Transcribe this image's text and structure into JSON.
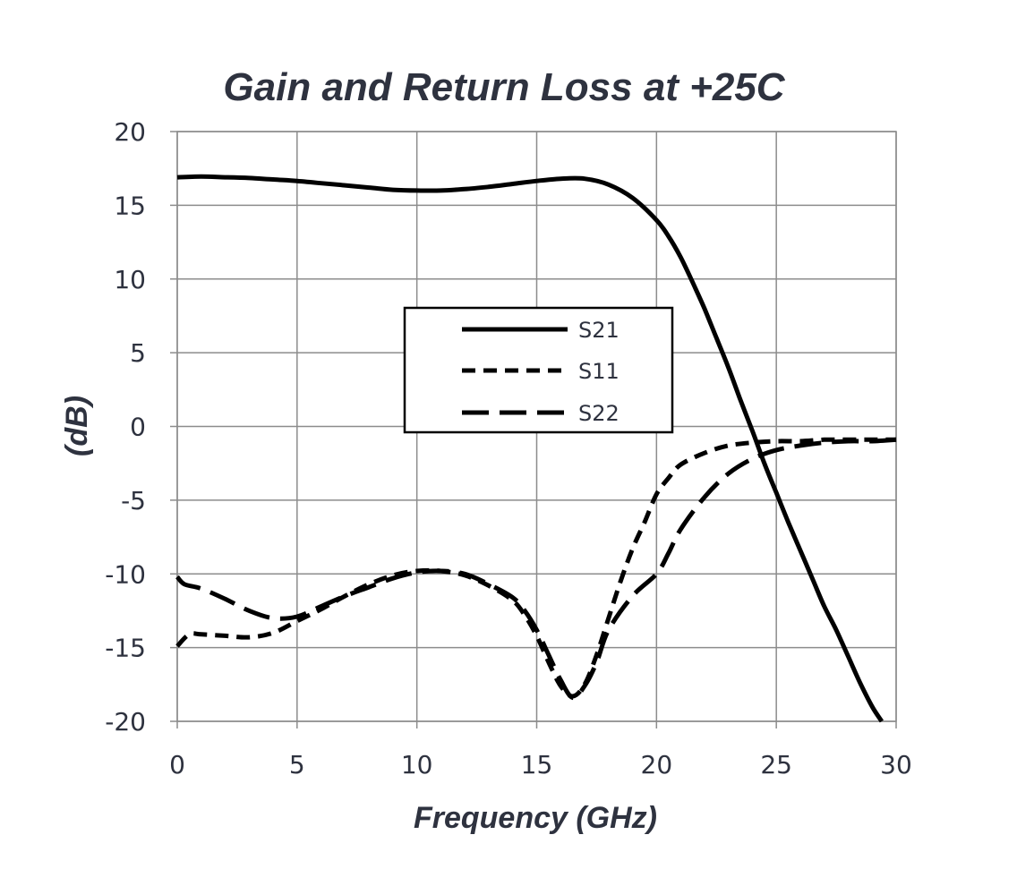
{
  "chart_data": {
    "type": "line",
    "title": "Gain and Return Loss at +25C",
    "xlabel": "Frequency (GHz)",
    "ylabel": "(dB)",
    "xlim": [
      0,
      30
    ],
    "ylim": [
      -20,
      20
    ],
    "x_ticks": [
      0,
      5,
      10,
      15,
      20,
      25,
      30
    ],
    "y_ticks": [
      20,
      15,
      10,
      5,
      0,
      -5,
      -10,
      -15,
      -20
    ],
    "x_tick_labels": [
      "0",
      "5",
      "10",
      "15",
      "20",
      "25",
      "30"
    ],
    "y_tick_labels": [
      "20",
      "15",
      "10",
      "5",
      "0",
      "-5",
      "-10",
      "-15",
      "-20"
    ],
    "grid": true,
    "legend_position": "center",
    "line_color": "#000000",
    "text_color": "#2e323f",
    "grid_color": "#8c8c8c",
    "series": [
      {
        "name": "S21",
        "style": "solid",
        "x": [
          0,
          1,
          2,
          3,
          4,
          5,
          6,
          7,
          8,
          9,
          10,
          11,
          12,
          13,
          14,
          15,
          16,
          17,
          18,
          19,
          20,
          20.5,
          21,
          21.5,
          22,
          22.5,
          23,
          23.5,
          24,
          24.5,
          25,
          25.5,
          26,
          26.5,
          27,
          27.5,
          28,
          28.5,
          29,
          29.4
        ],
        "y": [
          16.9,
          16.95,
          16.9,
          16.85,
          16.75,
          16.65,
          16.5,
          16.35,
          16.2,
          16.05,
          16.0,
          16.0,
          16.1,
          16.25,
          16.45,
          16.65,
          16.8,
          16.8,
          16.4,
          15.5,
          14.0,
          12.9,
          11.5,
          9.8,
          8.0,
          6.0,
          4.0,
          1.8,
          -0.3,
          -2.5,
          -4.5,
          -6.5,
          -8.4,
          -10.3,
          -12.2,
          -13.8,
          -15.6,
          -17.4,
          -19.0,
          -20.0
        ]
      },
      {
        "name": "S11",
        "style": "short-dash",
        "x": [
          0,
          0.5,
          1,
          2,
          3,
          4,
          5,
          6,
          7,
          8,
          9,
          10,
          11,
          12,
          13,
          14,
          14.5,
          15,
          15.5,
          16,
          16.5,
          17,
          17.5,
          18,
          18.5,
          19,
          19.5,
          20,
          20.5,
          21,
          22,
          23,
          24,
          25,
          26,
          27,
          28,
          29,
          30
        ],
        "y": [
          -14.9,
          -14.1,
          -14.1,
          -14.2,
          -14.3,
          -14.0,
          -13.2,
          -12.4,
          -11.5,
          -10.7,
          -10.1,
          -9.8,
          -9.8,
          -10.1,
          -10.8,
          -11.8,
          -12.8,
          -14.2,
          -16.0,
          -17.6,
          -18.3,
          -17.5,
          -15.5,
          -13.0,
          -10.5,
          -8.3,
          -6.5,
          -4.6,
          -3.5,
          -2.6,
          -1.8,
          -1.3,
          -1.1,
          -1.0,
          -1.0,
          -0.9,
          -0.9,
          -0.9,
          -0.9
        ]
      },
      {
        "name": "S22",
        "style": "long-dash",
        "x": [
          0,
          0.3,
          1,
          2,
          3,
          4,
          5,
          6,
          7,
          8,
          9,
          10,
          11,
          12,
          13,
          14,
          14.5,
          15,
          15.5,
          16,
          16.5,
          17,
          17.5,
          18,
          19,
          20,
          20.5,
          21,
          22,
          23,
          24,
          25,
          26,
          27,
          28,
          29,
          30
        ],
        "y": [
          -10.2,
          -10.7,
          -11.0,
          -11.7,
          -12.5,
          -13.0,
          -12.9,
          -12.2,
          -11.5,
          -10.9,
          -10.3,
          -9.9,
          -9.8,
          -10.0,
          -10.7,
          -11.6,
          -12.5,
          -13.8,
          -15.5,
          -17.2,
          -18.4,
          -17.6,
          -16.0,
          -13.8,
          -11.5,
          -10.0,
          -8.6,
          -7.0,
          -4.8,
          -3.2,
          -2.2,
          -1.6,
          -1.3,
          -1.1,
          -1.0,
          -1.0,
          -0.9
        ]
      }
    ]
  }
}
